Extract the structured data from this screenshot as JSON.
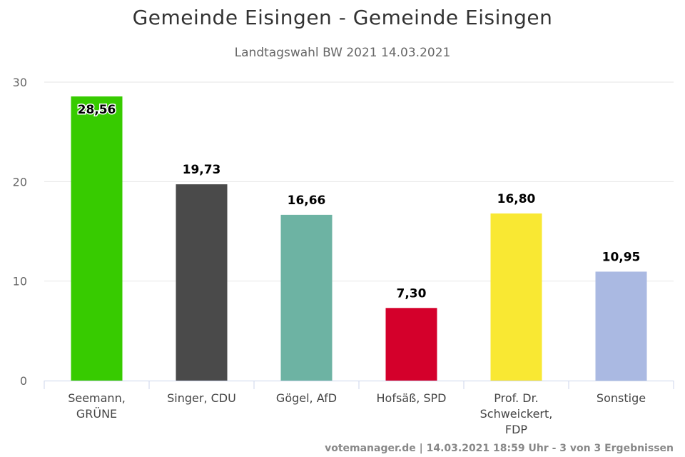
{
  "chart_data": {
    "type": "bar",
    "title": "Gemeinde Eisingen - Gemeinde Eisingen",
    "subtitle": "Landtagswahl BW 2021 14.03.2021",
    "categories": [
      [
        "Seemann,",
        "GRÜNE"
      ],
      [
        "Singer, CDU"
      ],
      [
        "Gögel, AfD"
      ],
      [
        "Hofsäß, SPD"
      ],
      [
        "Prof. Dr.",
        "Schweickert,",
        "FDP"
      ],
      [
        "Sonstige"
      ]
    ],
    "values": [
      28.56,
      19.73,
      16.66,
      7.3,
      16.8,
      10.95
    ],
    "value_labels": [
      "28,56",
      "19,73",
      "16,66",
      "7,30",
      "16,80",
      "10,95"
    ],
    "colors": [
      "#37cb00",
      "#4a4a4a",
      "#6db3a3",
      "#d4002b",
      "#f9e833",
      "#aab9e2"
    ],
    "yticks": [
      0,
      10,
      20,
      30
    ],
    "ylim": [
      0,
      30
    ],
    "xlabel": "",
    "ylabel": "",
    "grid": true,
    "legend": "none"
  },
  "credits": "votemanager.de | 14.03.2021 18:59 Uhr - 3 von 3 Ergebnissen"
}
